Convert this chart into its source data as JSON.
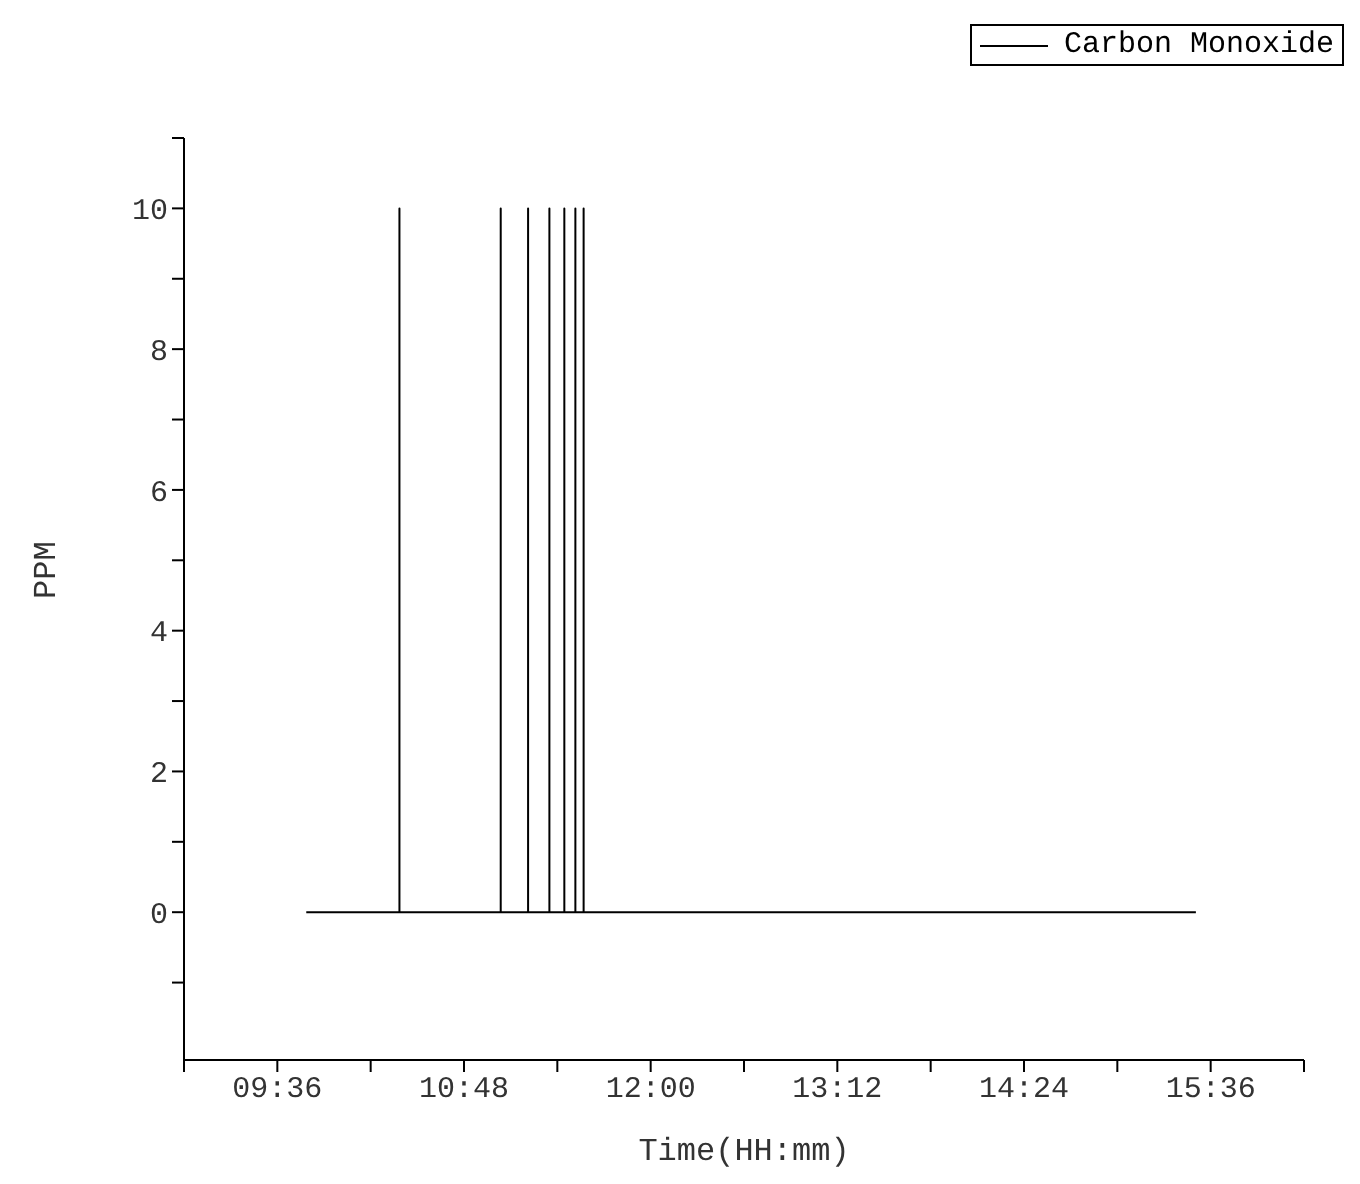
{
  "chart_data": {
    "type": "line",
    "xlabel": "Time(HH:mm)",
    "ylabel": "PPM",
    "x": [
      9.786,
      10.385,
      10.385,
      10.385,
      11.036,
      11.036,
      11.036,
      11.212,
      11.212,
      11.212,
      11.349,
      11.349,
      11.349,
      11.445,
      11.445,
      11.445,
      11.516,
      11.516,
      11.516,
      11.569,
      11.569,
      11.569,
      15.505
    ],
    "series": [
      {
        "name": "Carbon Monoxide",
        "color": "#000000",
        "values": [
          0,
          0,
          10,
          0,
          0,
          10,
          0,
          0,
          10,
          0,
          0,
          10,
          0,
          0,
          10,
          0,
          0,
          10,
          0,
          0,
          10,
          0,
          0
        ]
      }
    ],
    "xlim": [
      9.0,
      16.2
    ],
    "xticks": [
      {
        "value": 9.0,
        "label": null
      },
      {
        "value": 9.6,
        "label": "09:36"
      },
      {
        "value": 10.2,
        "label": null
      },
      {
        "value": 10.8,
        "label": "10:48"
      },
      {
        "value": 11.4,
        "label": null
      },
      {
        "value": 12.0,
        "label": "12:00"
      },
      {
        "value": 12.6,
        "label": null
      },
      {
        "value": 13.2,
        "label": "13:12"
      },
      {
        "value": 13.8,
        "label": null
      },
      {
        "value": 14.4,
        "label": "14:24"
      },
      {
        "value": 15.0,
        "label": null
      },
      {
        "value": 15.6,
        "label": "15:36"
      },
      {
        "value": 16.2,
        "label": null
      }
    ],
    "ylim": [
      -2.1,
      11
    ],
    "yticks": [
      {
        "value": -1,
        "label": null
      },
      0,
      {
        "value": 1,
        "label": null
      },
      2,
      {
        "value": 3,
        "label": null
      },
      4,
      {
        "value": 5,
        "label": null
      },
      6,
      {
        "value": 7,
        "label": null
      },
      8,
      {
        "value": 9,
        "label": null
      },
      10,
      {
        "value": 11,
        "label": null
      }
    ],
    "grid": false,
    "legend": "top right",
    "marker": "none",
    "line_style": "solid"
  }
}
